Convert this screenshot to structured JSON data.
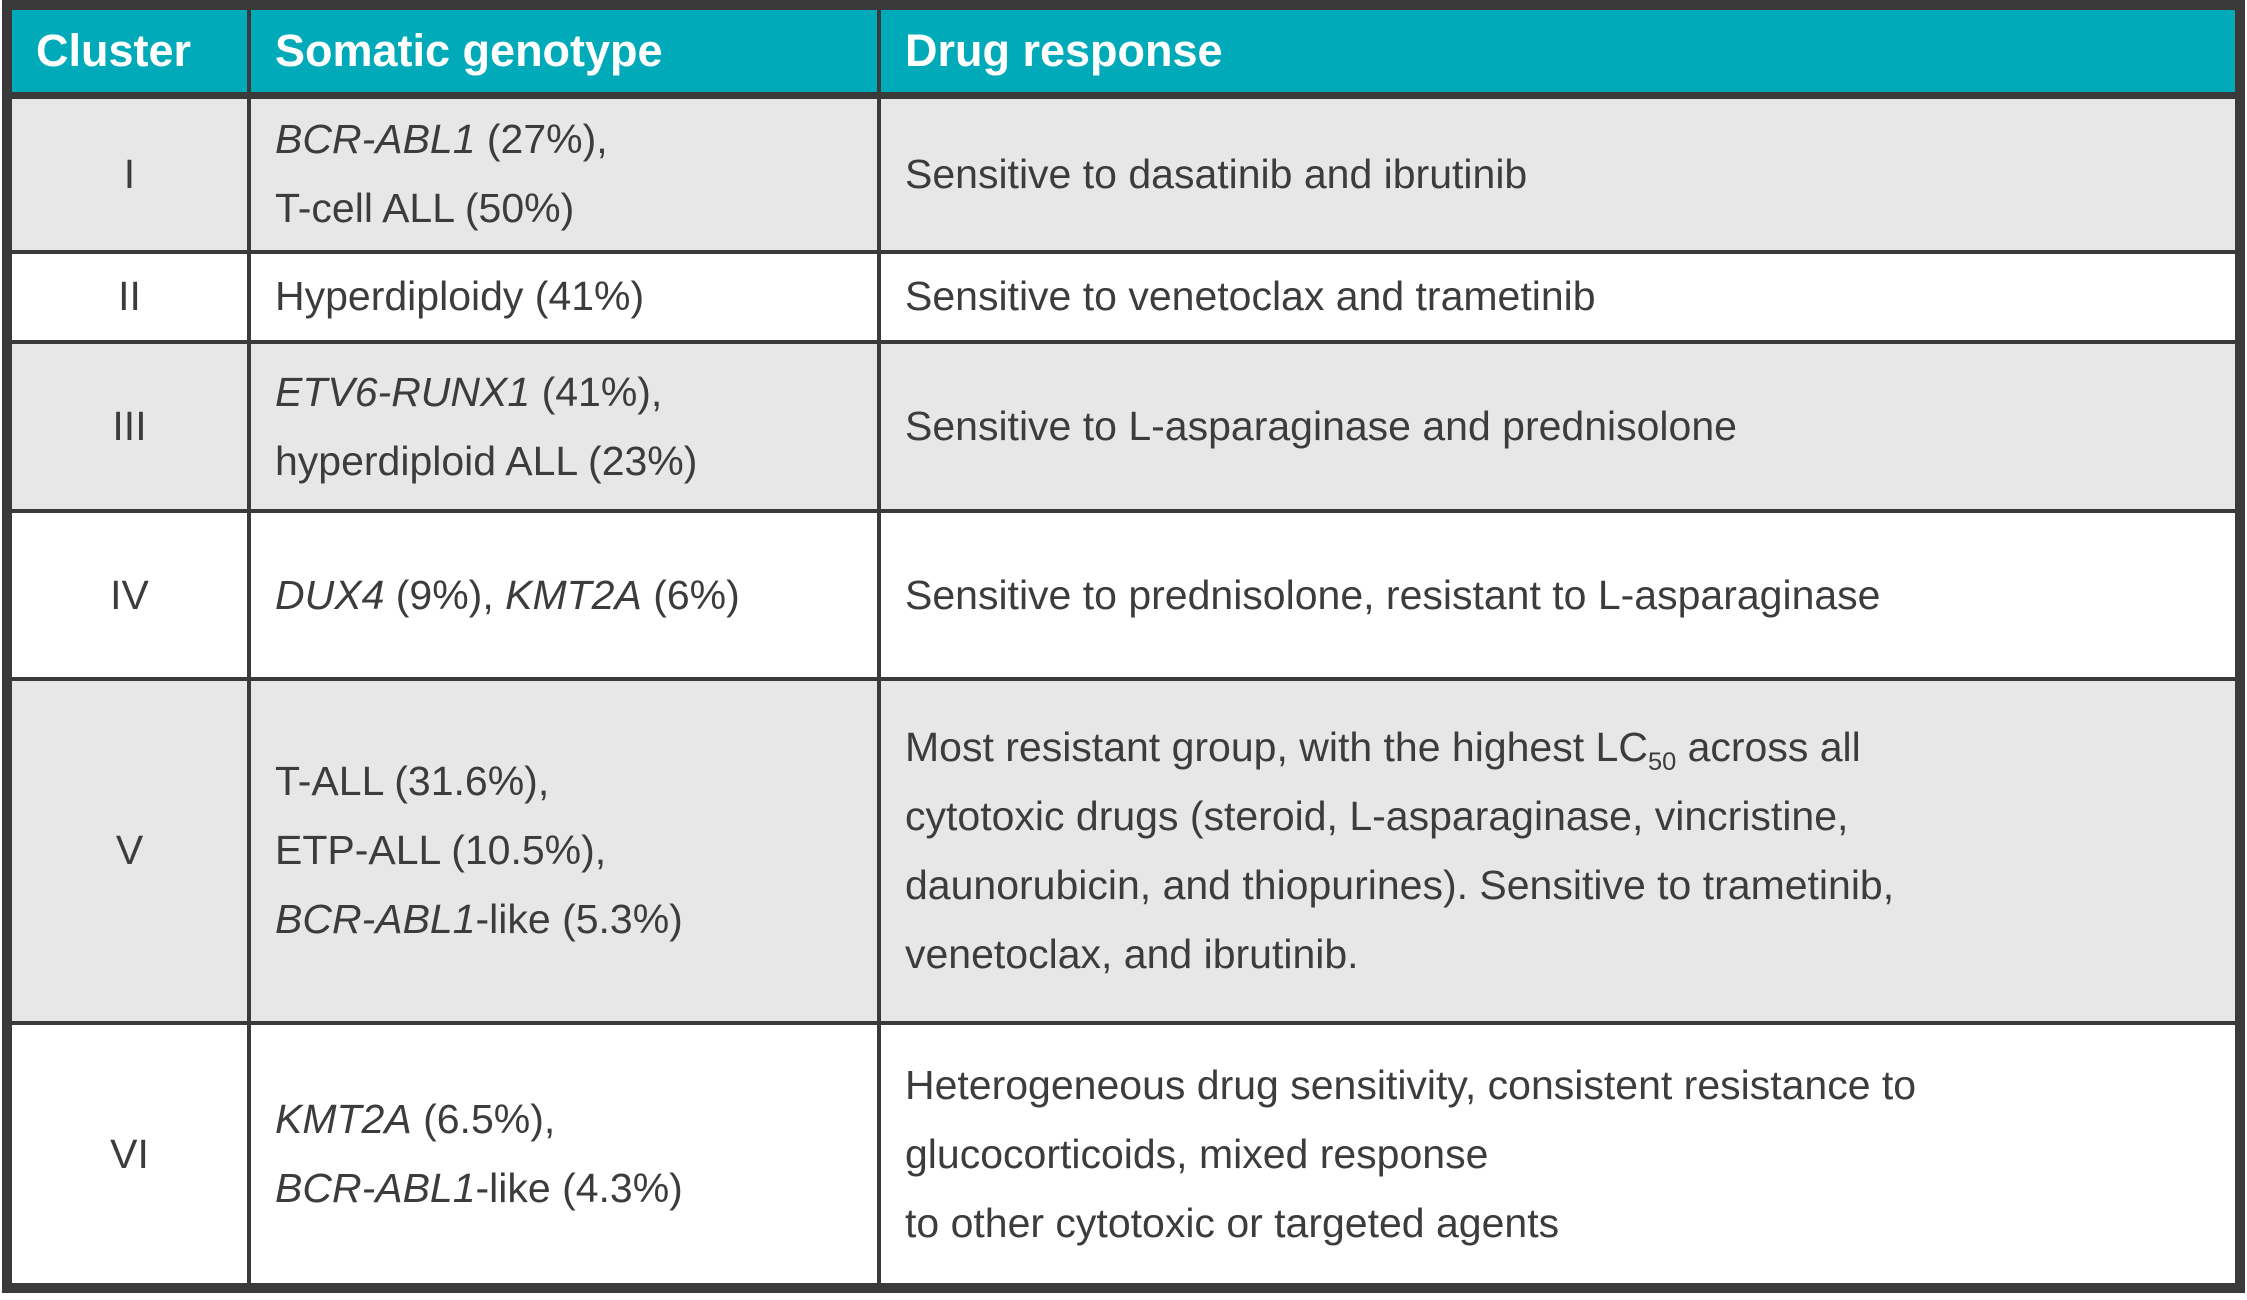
{
  "colors": {
    "header_bg": "#00AAB8",
    "header_text": "#FFFFFF",
    "body_text": "#3C3C3C",
    "row_alt_bg": "#E7E7E7",
    "row_bg": "#FFFFFF",
    "border": "#3A3A3A"
  },
  "table": {
    "columns": [
      {
        "label": "Cluster"
      },
      {
        "label": "Somatic genotype"
      },
      {
        "label": "Drug response"
      }
    ],
    "rows": [
      {
        "cluster": "I",
        "genotype_lines": [
          [
            {
              "t": "BCR-ABL1",
              "i": true
            },
            {
              "t": " (27%),"
            }
          ],
          [
            {
              "t": "T-cell ALL (50%)"
            }
          ]
        ],
        "response_lines": [
          [
            {
              "t": "Sensitive to dasatinib and ibrutinib"
            }
          ]
        ]
      },
      {
        "cluster": "II",
        "genotype_lines": [
          [
            {
              "t": "Hyperdiploidy (41%)"
            }
          ]
        ],
        "response_lines": [
          [
            {
              "t": "Sensitive to venetoclax and trametinib"
            }
          ]
        ]
      },
      {
        "cluster": "III",
        "genotype_lines": [
          [
            {
              "t": "ETV6-RUNX1",
              "i": true
            },
            {
              "t": " (41%),"
            }
          ],
          [
            {
              "t": "hyperdiploid ALL (23%)"
            }
          ]
        ],
        "response_lines": [
          [
            {
              "t": "Sensitive to L-asparaginase and prednisolone"
            }
          ]
        ]
      },
      {
        "cluster": "IV",
        "genotype_lines": [
          [
            {
              "t": "DUX4",
              "i": true
            },
            {
              "t": " (9%), "
            },
            {
              "t": "KMT2A",
              "i": true
            },
            {
              "t": " (6%)"
            }
          ]
        ],
        "response_lines": [
          [
            {
              "t": "Sensitive to prednisolone, resistant to L-asparaginase"
            }
          ]
        ]
      },
      {
        "cluster": "V",
        "genotype_lines": [
          [
            {
              "t": "T-ALL (31.6%),"
            }
          ],
          [
            {
              "t": "ETP-ALL (10.5%),"
            }
          ],
          [
            {
              "t": "BCR-ABL1",
              "i": true
            },
            {
              "t": "-like (5.3%)"
            }
          ]
        ],
        "response_lines": [
          [
            {
              "t": "Most resistant group, with the highest LC"
            },
            {
              "t": "50",
              "sub": true
            },
            {
              "t": " across all"
            }
          ],
          [
            {
              "t": "cytotoxic drugs (steroid, L-asparaginase, vincristine,"
            }
          ],
          [
            {
              "t": "daunorubicin, and thiopurines). Sensitive to trametinib,"
            }
          ],
          [
            {
              "t": "venetoclax, and ibrutinib."
            }
          ]
        ]
      },
      {
        "cluster": "VI",
        "genotype_lines": [
          [
            {
              "t": "KMT2A",
              "i": true
            },
            {
              "t": " (6.5%),"
            }
          ],
          [
            {
              "t": "BCR-ABL1",
              "i": true
            },
            {
              "t": "-like (4.3%)"
            }
          ]
        ],
        "response_lines": [
          [
            {
              "t": "Heterogeneous drug sensitivity, consistent resistance to"
            }
          ],
          [
            {
              "t": "glucocorticoids, mixed response"
            }
          ],
          [
            {
              "t": "to other cytotoxic or targeted agents"
            }
          ]
        ]
      }
    ]
  }
}
